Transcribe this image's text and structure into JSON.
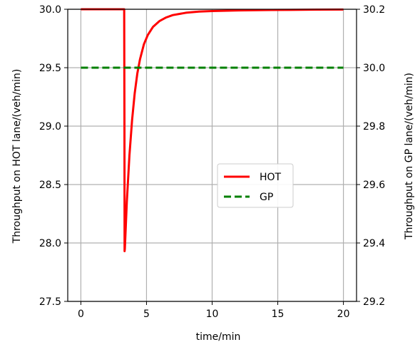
{
  "chart_data": {
    "type": "line",
    "xlabel": "time/min",
    "ylabel_left": "Throughput on HOT lane/(veh/min)",
    "ylabel_right": "Throughput on GP lane/(veh/min)",
    "xlim": [
      -1,
      21
    ],
    "ylim_left": [
      27.5,
      30.0
    ],
    "ylim_right": [
      29.2,
      30.2
    ],
    "xticks": [
      "0",
      "5",
      "10",
      "15",
      "20"
    ],
    "xtick_values": [
      0,
      5,
      10,
      15,
      20
    ],
    "yticks_left": [
      "27.5",
      "28.0",
      "28.5",
      "29.0",
      "29.5",
      "30.0"
    ],
    "ytick_values_left": [
      27.5,
      28.0,
      28.5,
      29.0,
      29.5,
      30.0
    ],
    "yticks_right": [
      "29.2",
      "29.4",
      "29.6",
      "29.8",
      "30.0",
      "30.2"
    ],
    "ytick_values_right": [
      29.2,
      29.4,
      29.6,
      29.8,
      30.0,
      30.2
    ],
    "grid": true,
    "legend_position": "center-right",
    "series": [
      {
        "name": "HOT",
        "axis": "left",
        "color": "#ff0000",
        "style": "solid",
        "x": [
          0,
          3.3,
          3.32,
          3.33,
          3.35,
          3.5,
          3.7,
          3.9,
          4.1,
          4.3,
          4.5,
          4.8,
          5.1,
          5.5,
          6,
          6.5,
          7,
          8,
          9,
          10,
          12,
          14,
          16,
          18,
          20
        ],
        "y": [
          30.0,
          30.0,
          29.0,
          27.93,
          27.95,
          28.35,
          28.75,
          29.05,
          29.28,
          29.45,
          29.57,
          29.7,
          29.78,
          29.85,
          29.9,
          29.93,
          29.95,
          29.97,
          29.98,
          29.985,
          29.99,
          29.993,
          29.995,
          29.997,
          29.998
        ]
      },
      {
        "name": "GP",
        "axis": "right",
        "color": "#008000",
        "style": "dashed",
        "x": [
          0,
          20
        ],
        "y": [
          30.0,
          30.0
        ]
      }
    ]
  },
  "legend": {
    "items": [
      {
        "label": "HOT",
        "color": "#ff0000",
        "style": "solid"
      },
      {
        "label": "GP",
        "color": "#008000",
        "style": "dashed"
      }
    ]
  }
}
